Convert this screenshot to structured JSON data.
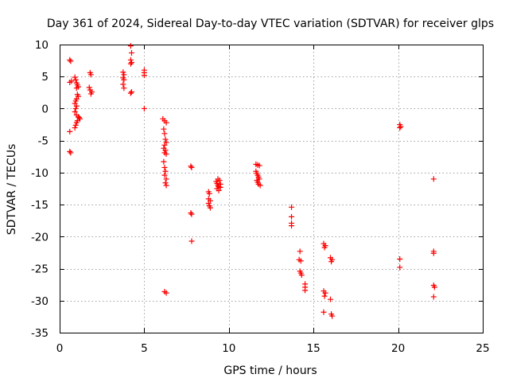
{
  "chart_data": {
    "type": "scatter",
    "title": "Day 361 of 2024, Sidereal Day-to-day VTEC variation (SDTVAR) for receiver glps",
    "xlabel": "GPS time / hours",
    "ylabel": "SDTVAR / TECUs",
    "xlim": [
      0,
      25
    ],
    "ylim": [
      -35,
      10
    ],
    "xticks": [
      0,
      5,
      10,
      15,
      20,
      25
    ],
    "yticks": [
      -35,
      -30,
      -25,
      -20,
      -15,
      -10,
      -5,
      0,
      5,
      10
    ],
    "grid": true,
    "marker": "+",
    "color": "#ff0000",
    "series": [
      {
        "name": "SDTVAR",
        "points": [
          [
            0.6,
            7.6
          ],
          [
            0.65,
            7.4
          ],
          [
            0.6,
            4.1
          ],
          [
            0.7,
            4.3
          ],
          [
            0.6,
            -3.6
          ],
          [
            0.6,
            -6.7
          ],
          [
            0.65,
            -6.9
          ],
          [
            0.9,
            4.9
          ],
          [
            0.95,
            4.5
          ],
          [
            1.0,
            4.0
          ],
          [
            1.05,
            3.7
          ],
          [
            1.1,
            3.4
          ],
          [
            1.0,
            3.2
          ],
          [
            1.05,
            2.2
          ],
          [
            1.1,
            1.9
          ],
          [
            1.0,
            1.5
          ],
          [
            0.95,
            1.2
          ],
          [
            0.9,
            0.8
          ],
          [
            1.0,
            0.4
          ],
          [
            0.95,
            0.0
          ],
          [
            0.9,
            -0.5
          ],
          [
            1.0,
            -1.0
          ],
          [
            1.1,
            -1.3
          ],
          [
            1.2,
            -1.6
          ],
          [
            1.05,
            -1.9
          ],
          [
            1.0,
            -2.2
          ],
          [
            0.95,
            -2.6
          ],
          [
            0.9,
            -3.0
          ],
          [
            1.15,
            -1.4
          ],
          [
            1.8,
            5.6
          ],
          [
            1.85,
            5.3
          ],
          [
            1.75,
            3.3
          ],
          [
            1.8,
            2.9
          ],
          [
            1.9,
            2.6
          ],
          [
            1.85,
            2.3
          ],
          [
            3.75,
            5.7
          ],
          [
            3.8,
            5.3
          ],
          [
            3.75,
            4.8
          ],
          [
            3.8,
            4.5
          ],
          [
            3.75,
            3.8
          ],
          [
            3.8,
            3.2
          ],
          [
            4.2,
            9.8
          ],
          [
            4.25,
            8.7
          ],
          [
            4.2,
            7.6
          ],
          [
            4.25,
            7.2
          ],
          [
            4.2,
            7.0
          ],
          [
            4.25,
            2.6
          ],
          [
            4.2,
            2.4
          ],
          [
            5.0,
            6.0
          ],
          [
            5.0,
            5.6
          ],
          [
            5.0,
            5.2
          ],
          [
            5.0,
            0.0
          ],
          [
            6.1,
            -1.6
          ],
          [
            6.2,
            -1.9
          ],
          [
            6.3,
            -2.2
          ],
          [
            6.15,
            -3.2
          ],
          [
            6.2,
            -3.9
          ],
          [
            6.25,
            -4.8
          ],
          [
            6.3,
            -5.3
          ],
          [
            6.2,
            -5.7
          ],
          [
            6.15,
            -6.2
          ],
          [
            6.25,
            -6.5
          ],
          [
            6.2,
            -6.9
          ],
          [
            6.3,
            -7.1
          ],
          [
            6.15,
            -8.3
          ],
          [
            6.2,
            -9.2
          ],
          [
            6.25,
            -9.8
          ],
          [
            6.2,
            -10.4
          ],
          [
            6.3,
            -11.0
          ],
          [
            6.25,
            -11.6
          ],
          [
            6.3,
            -12.0
          ],
          [
            6.2,
            -28.6
          ],
          [
            6.3,
            -28.8
          ],
          [
            7.75,
            -9.0
          ],
          [
            7.8,
            -9.2
          ],
          [
            7.75,
            -16.3
          ],
          [
            7.8,
            -16.5
          ],
          [
            7.8,
            -20.7
          ],
          [
            8.8,
            -13.0
          ],
          [
            8.85,
            -13.3
          ],
          [
            8.8,
            -14.1
          ],
          [
            8.9,
            -14.4
          ],
          [
            8.8,
            -14.8
          ],
          [
            8.85,
            -15.2
          ],
          [
            8.9,
            -15.5
          ],
          [
            9.25,
            -11.4
          ],
          [
            9.3,
            -11.7
          ],
          [
            9.35,
            -12.0
          ],
          [
            9.4,
            -12.2
          ],
          [
            9.3,
            -12.5
          ],
          [
            9.45,
            -11.2
          ],
          [
            9.5,
            -11.8
          ],
          [
            9.4,
            -12.8
          ],
          [
            9.35,
            -11.0
          ],
          [
            9.5,
            -12.3
          ],
          [
            11.6,
            -8.7
          ],
          [
            11.7,
            -8.8
          ],
          [
            11.8,
            -8.9
          ],
          [
            11.6,
            -9.8
          ],
          [
            11.65,
            -10.1
          ],
          [
            11.7,
            -10.4
          ],
          [
            11.75,
            -10.7
          ],
          [
            11.8,
            -11.0
          ],
          [
            11.65,
            -11.2
          ],
          [
            11.7,
            -11.5
          ],
          [
            11.75,
            -11.8
          ],
          [
            11.85,
            -12.0
          ],
          [
            13.7,
            -15.4
          ],
          [
            13.7,
            -16.9
          ],
          [
            13.7,
            -17.9
          ],
          [
            13.7,
            -18.3
          ],
          [
            14.2,
            -22.3
          ],
          [
            14.15,
            -23.6
          ],
          [
            14.25,
            -23.8
          ],
          [
            14.2,
            -25.4
          ],
          [
            14.25,
            -25.7
          ],
          [
            14.3,
            -26.0
          ],
          [
            14.5,
            -27.4
          ],
          [
            14.5,
            -27.9
          ],
          [
            14.5,
            -28.4
          ],
          [
            15.6,
            -21.1
          ],
          [
            15.7,
            -21.4
          ],
          [
            15.65,
            -21.7
          ],
          [
            15.6,
            -28.5
          ],
          [
            15.7,
            -28.8
          ],
          [
            15.65,
            -29.3
          ],
          [
            15.6,
            -31.8
          ],
          [
            16.0,
            -23.3
          ],
          [
            16.1,
            -23.6
          ],
          [
            16.05,
            -23.9
          ],
          [
            16.0,
            -29.8
          ],
          [
            16.05,
            -32.1
          ],
          [
            16.1,
            -32.4
          ],
          [
            20.1,
            -2.5
          ],
          [
            20.15,
            -2.8
          ],
          [
            20.1,
            -3.0
          ],
          [
            20.1,
            -23.5
          ],
          [
            20.1,
            -24.8
          ],
          [
            22.1,
            -11.0
          ],
          [
            22.1,
            -22.3
          ],
          [
            22.1,
            -22.6
          ],
          [
            22.1,
            -27.6
          ],
          [
            22.15,
            -27.9
          ],
          [
            22.1,
            -29.4
          ]
        ]
      }
    ]
  }
}
